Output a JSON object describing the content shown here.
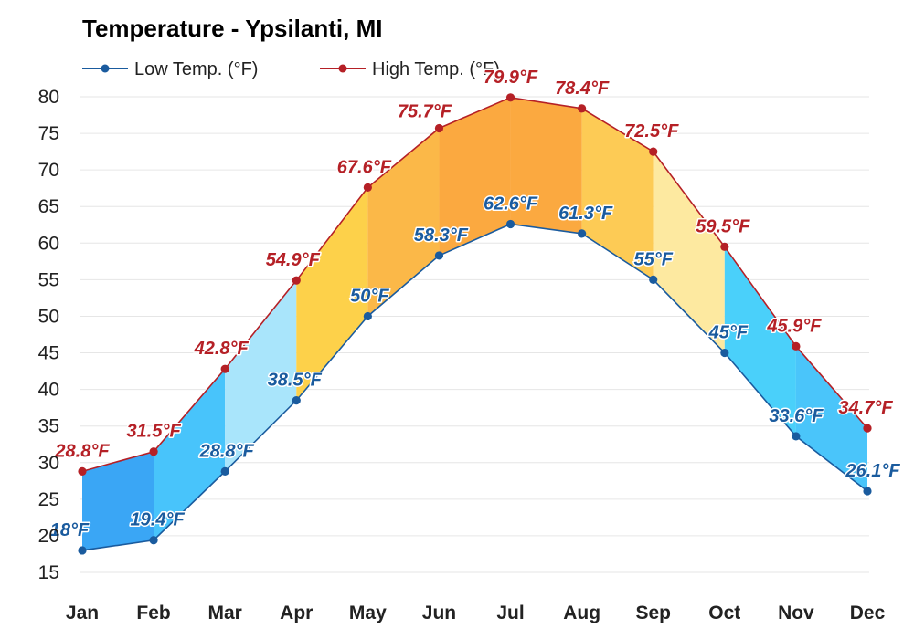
{
  "chart_data": {
    "type": "area",
    "title": "Temperature - Ypsilanti, MI",
    "xlabel": "",
    "ylabel": "",
    "categories": [
      "Jan",
      "Feb",
      "Mar",
      "Apr",
      "May",
      "Jun",
      "Jul",
      "Aug",
      "Sep",
      "Oct",
      "Nov",
      "Dec"
    ],
    "ylim": [
      15,
      80
    ],
    "yticks": [
      15,
      20,
      25,
      30,
      35,
      40,
      45,
      50,
      55,
      60,
      65,
      70,
      75,
      80
    ],
    "grid": true,
    "legend_position": "top-left",
    "series": [
      {
        "name": "Low Temp. (°F)",
        "color": "#1a5b9e",
        "values": [
          18,
          19.4,
          28.8,
          38.5,
          50,
          58.3,
          62.6,
          61.3,
          55,
          45,
          33.6,
          26.1
        ],
        "labels": [
          "18°F",
          "19.4°F",
          "28.8°F",
          "38.5°F",
          "50°F",
          "58.3°F",
          "62.6°F",
          "61.3°F",
          "55°F",
          "45°F",
          "33.6°F",
          "26.1°F"
        ]
      },
      {
        "name": "High Temp. (°F)",
        "color": "#b52026",
        "values": [
          28.8,
          31.5,
          42.8,
          54.9,
          67.6,
          75.7,
          79.9,
          78.4,
          72.5,
          59.5,
          45.9,
          34.7
        ],
        "labels": [
          "28.8°F",
          "31.5°F",
          "42.8°F",
          "54.9°F",
          "67.6°F",
          "75.7°F",
          "79.9°F",
          "78.4°F",
          "72.5°F",
          "59.5°F",
          "45.9°F",
          "34.7°F"
        ]
      }
    ],
    "band_colors": [
      "#3aa6f5",
      "#48c4fb",
      "#a9e5fb",
      "#fdd14a",
      "#fbb848",
      "#fba940",
      "#fba940",
      "#fdcb55",
      "#fde9a0",
      "#4ad0fa",
      "#4ac5fa"
    ]
  }
}
